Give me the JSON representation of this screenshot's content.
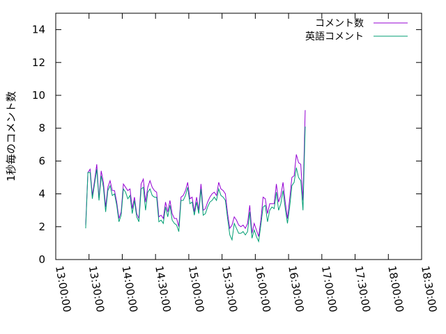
{
  "chart_data": {
    "type": "line",
    "ylabel": "1秒毎のコメント数",
    "xlabel": "",
    "title": "",
    "ylim": [
      0,
      15
    ],
    "yticks": [
      0,
      2,
      4,
      6,
      8,
      10,
      12,
      14
    ],
    "xlim": [
      "13:00:00",
      "18:30:00"
    ],
    "xticks": [
      "13:00:00",
      "13:30:00",
      "14:00:00",
      "14:30:00",
      "15:00:00",
      "15:30:00",
      "16:00:00",
      "16:30:00",
      "17:00:00",
      "17:30:00",
      "18:00:00",
      "18:30:00"
    ],
    "grid": false,
    "legend": "top-right",
    "series": [
      {
        "name": "コメント数",
        "color": "#9400d3",
        "points": [
          [
            "13:27:00",
            2.1
          ],
          [
            "13:29:00",
            5.3
          ],
          [
            "13:31:00",
            5.5
          ],
          [
            "13:33:00",
            3.9
          ],
          [
            "13:35:00",
            4.8
          ],
          [
            "13:37:00",
            5.8
          ],
          [
            "13:39:00",
            3.7
          ],
          [
            "13:41:00",
            5.4
          ],
          [
            "13:43:00",
            4.7
          ],
          [
            "13:45:00",
            3.2
          ],
          [
            "13:47:00",
            4.4
          ],
          [
            "13:49:00",
            4.8
          ],
          [
            "13:51:00",
            4.2
          ],
          [
            "13:53:00",
            4.2
          ],
          [
            "13:55:00",
            3.5
          ],
          [
            "13:57:00",
            2.5
          ],
          [
            "13:59:00",
            2.9
          ],
          [
            "14:01:00",
            4.6
          ],
          [
            "14:03:00",
            4.4
          ],
          [
            "14:05:00",
            4.2
          ],
          [
            "14:07:00",
            4.3
          ],
          [
            "14:09:00",
            3.1
          ],
          [
            "14:11:00",
            3.8
          ],
          [
            "14:13:00",
            2.8
          ],
          [
            "14:15:00",
            2.5
          ],
          [
            "14:17:00",
            4.6
          ],
          [
            "14:19:00",
            4.9
          ],
          [
            "14:21:00",
            3.5
          ],
          [
            "14:23:00",
            4.4
          ],
          [
            "14:25:00",
            4.8
          ],
          [
            "14:27:00",
            4.4
          ],
          [
            "14:29:00",
            4.2
          ],
          [
            "14:31:00",
            4.1
          ],
          [
            "14:33:00",
            2.6
          ],
          [
            "14:35:00",
            2.7
          ],
          [
            "14:37:00",
            2.5
          ],
          [
            "14:39:00",
            3.5
          ],
          [
            "14:41:00",
            2.9
          ],
          [
            "14:43:00",
            3.6
          ],
          [
            "14:45:00",
            2.8
          ],
          [
            "14:47:00",
            2.5
          ],
          [
            "14:49:00",
            2.5
          ],
          [
            "14:51:00",
            2.0
          ],
          [
            "14:53:00",
            3.8
          ],
          [
            "14:55:00",
            3.9
          ],
          [
            "14:57:00",
            4.2
          ],
          [
            "14:59:00",
            4.7
          ],
          [
            "15:01:00",
            3.7
          ],
          [
            "15:03:00",
            3.8
          ],
          [
            "15:05:00",
            2.9
          ],
          [
            "15:07:00",
            3.8
          ],
          [
            "15:09:00",
            3.0
          ],
          [
            "15:11:00",
            4.6
          ],
          [
            "15:13:00",
            3.0
          ],
          [
            "15:15:00",
            3.1
          ],
          [
            "15:17:00",
            3.5
          ],
          [
            "15:19:00",
            3.8
          ],
          [
            "15:21:00",
            4.0
          ],
          [
            "15:23:00",
            4.1
          ],
          [
            "15:25:00",
            3.9
          ],
          [
            "15:27:00",
            4.7
          ],
          [
            "15:29:00",
            4.3
          ],
          [
            "15:31:00",
            4.2
          ],
          [
            "15:33:00",
            4.0
          ],
          [
            "15:35:00",
            2.8
          ],
          [
            "15:37:00",
            1.9
          ],
          [
            "15:39:00",
            2.1
          ],
          [
            "15:41:00",
            2.6
          ],
          [
            "15:43:00",
            2.4
          ],
          [
            "15:45:00",
            2.1
          ],
          [
            "15:47:00",
            2.0
          ],
          [
            "15:49:00",
            2.1
          ],
          [
            "15:51:00",
            1.9
          ],
          [
            "15:53:00",
            2.2
          ],
          [
            "15:55:00",
            3.3
          ],
          [
            "15:57:00",
            1.6
          ],
          [
            "15:59:00",
            2.2
          ],
          [
            "16:01:00",
            1.8
          ],
          [
            "16:03:00",
            1.4
          ],
          [
            "16:05:00",
            2.4
          ],
          [
            "16:07:00",
            3.8
          ],
          [
            "16:09:00",
            3.7
          ],
          [
            "16:11:00",
            2.8
          ],
          [
            "16:13:00",
            3.4
          ],
          [
            "16:15:00",
            3.4
          ],
          [
            "16:17:00",
            3.4
          ],
          [
            "16:19:00",
            4.6
          ],
          [
            "16:21:00",
            3.5
          ],
          [
            "16:23:00",
            3.9
          ],
          [
            "16:25:00",
            4.7
          ],
          [
            "16:27:00",
            3.5
          ],
          [
            "16:29:00",
            2.5
          ],
          [
            "16:31:00",
            3.7
          ],
          [
            "16:33:00",
            5.0
          ],
          [
            "16:35:00",
            5.1
          ],
          [
            "16:37:00",
            6.4
          ],
          [
            "16:39:00",
            5.9
          ],
          [
            "16:41:00",
            5.8
          ],
          [
            "16:43:00",
            3.6
          ],
          [
            "16:45:00",
            9.1
          ]
        ]
      },
      {
        "name": "英語コメント",
        "color": "#009e73",
        "points": [
          [
            "13:27:00",
            1.9
          ],
          [
            "13:29:00",
            5.3
          ],
          [
            "13:31:00",
            5.3
          ],
          [
            "13:33:00",
            3.7
          ],
          [
            "13:35:00",
            4.6
          ],
          [
            "13:37:00",
            5.5
          ],
          [
            "13:39:00",
            3.6
          ],
          [
            "13:41:00",
            5.1
          ],
          [
            "13:43:00",
            4.4
          ],
          [
            "13:45:00",
            2.9
          ],
          [
            "13:47:00",
            4.2
          ],
          [
            "13:49:00",
            4.5
          ],
          [
            "13:51:00",
            3.9
          ],
          [
            "13:53:00",
            4.0
          ],
          [
            "13:55:00",
            3.3
          ],
          [
            "13:57:00",
            2.3
          ],
          [
            "13:59:00",
            2.7
          ],
          [
            "14:01:00",
            4.3
          ],
          [
            "14:03:00",
            4.1
          ],
          [
            "14:05:00",
            3.7
          ],
          [
            "14:07:00",
            3.9
          ],
          [
            "14:09:00",
            2.8
          ],
          [
            "14:11:00",
            3.6
          ],
          [
            "14:13:00",
            2.6
          ],
          [
            "14:15:00",
            2.3
          ],
          [
            "14:17:00",
            4.3
          ],
          [
            "14:19:00",
            4.4
          ],
          [
            "14:21:00",
            3.0
          ],
          [
            "14:23:00",
            4.1
          ],
          [
            "14:25:00",
            4.3
          ],
          [
            "14:27:00",
            3.9
          ],
          [
            "14:29:00",
            3.8
          ],
          [
            "14:31:00",
            3.8
          ],
          [
            "14:33:00",
            2.3
          ],
          [
            "14:35:00",
            2.4
          ],
          [
            "14:37:00",
            2.2
          ],
          [
            "14:39:00",
            3.2
          ],
          [
            "14:41:00",
            2.6
          ],
          [
            "14:43:00",
            3.3
          ],
          [
            "14:45:00",
            2.4
          ],
          [
            "14:47:00",
            2.2
          ],
          [
            "14:49:00",
            2.1
          ],
          [
            "14:51:00",
            1.7
          ],
          [
            "14:53:00",
            3.6
          ],
          [
            "14:55:00",
            3.6
          ],
          [
            "14:57:00",
            3.9
          ],
          [
            "14:59:00",
            4.4
          ],
          [
            "15:01:00",
            3.4
          ],
          [
            "15:03:00",
            3.5
          ],
          [
            "15:05:00",
            2.7
          ],
          [
            "15:07:00",
            3.5
          ],
          [
            "15:09:00",
            2.8
          ],
          [
            "15:11:00",
            4.3
          ],
          [
            "15:13:00",
            2.7
          ],
          [
            "15:15:00",
            2.8
          ],
          [
            "15:17:00",
            3.2
          ],
          [
            "15:19:00",
            3.5
          ],
          [
            "15:21:00",
            3.6
          ],
          [
            "15:23:00",
            3.8
          ],
          [
            "15:25:00",
            3.6
          ],
          [
            "15:27:00",
            4.3
          ],
          [
            "15:29:00",
            3.9
          ],
          [
            "15:31:00",
            3.8
          ],
          [
            "15:33:00",
            3.6
          ],
          [
            "15:35:00",
            2.5
          ],
          [
            "15:37:00",
            1.5
          ],
          [
            "15:39:00",
            1.2
          ],
          [
            "15:41:00",
            2.2
          ],
          [
            "15:43:00",
            1.9
          ],
          [
            "15:45:00",
            1.6
          ],
          [
            "15:47:00",
            1.6
          ],
          [
            "15:49:00",
            1.7
          ],
          [
            "15:51:00",
            1.5
          ],
          [
            "15:53:00",
            1.7
          ],
          [
            "15:55:00",
            2.9
          ],
          [
            "15:57:00",
            1.3
          ],
          [
            "15:59:00",
            1.8
          ],
          [
            "16:01:00",
            1.4
          ],
          [
            "16:03:00",
            1.1
          ],
          [
            "16:05:00",
            2.1
          ],
          [
            "16:07:00",
            3.2
          ],
          [
            "16:09:00",
            3.3
          ],
          [
            "16:11:00",
            2.3
          ],
          [
            "16:13:00",
            3.0
          ],
          [
            "16:15:00",
            3.2
          ],
          [
            "16:17:00",
            3.1
          ],
          [
            "16:19:00",
            4.1
          ],
          [
            "16:21:00",
            3.0
          ],
          [
            "16:23:00",
            3.4
          ],
          [
            "16:25:00",
            4.2
          ],
          [
            "16:27:00",
            3.1
          ],
          [
            "16:29:00",
            2.2
          ],
          [
            "16:31:00",
            3.2
          ],
          [
            "16:33:00",
            4.5
          ],
          [
            "16:35:00",
            4.7
          ],
          [
            "16:37:00",
            5.6
          ],
          [
            "16:39:00",
            5.0
          ],
          [
            "16:41:00",
            4.8
          ],
          [
            "16:43:00",
            3.0
          ],
          [
            "16:45:00",
            8.1
          ]
        ]
      }
    ]
  }
}
